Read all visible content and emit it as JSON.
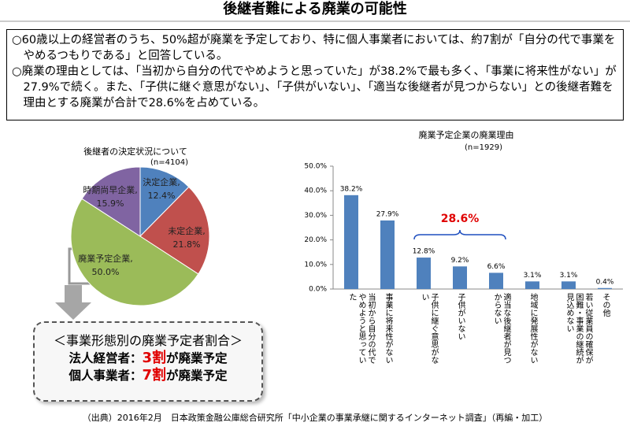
{
  "title": "後継者難による廃業の可能性",
  "summary": [
    "○60歳以上の経営者のうち、50%超が廃業を予定しており、特に個人事業者においては、約7割が「自分の代で事業をやめるつもりである」と回答している。",
    "○廃業の理由としては、「当初から自分の代でやめようと思っていた」が38.2%で最も多く、「事業に将来性がない」が27.9%で続く。また、「子供に継ぐ意思がない」、「子供がいない」、「適当な後継者が見つからない」との後継者難を理由とする廃業が合計で28.6%を占めている。"
  ],
  "chart_data": [
    {
      "type": "pie",
      "title": "後継者の決定状況について",
      "subtitle": "(n=4104)",
      "categories": [
        "決定企業,",
        "未定企業,",
        "廃業予定企業,",
        "時期尚早企業,"
      ],
      "values": [
        12.4,
        21.8,
        50,
        15.9
      ],
      "value_labels": [
        "12.4%",
        "21.8%",
        "50.0%",
        "15.9%"
      ],
      "colors": [
        "#4f81bd",
        "#c0504d",
        "#9bbb59",
        "#8064a2"
      ]
    },
    {
      "type": "bar",
      "title": "廃業予定企業の廃業理由",
      "subtitle": "(n=1929)",
      "categories": [
        "当初から自分の代でやめようと思っていた",
        "事業に将来性がない",
        "子供に継ぐ意思がない",
        "子供がいない",
        "適当な後継者が見つからない",
        "地域に発展性がない",
        "若い従業員の確保が困難・事業の継続が見込めない",
        "その他"
      ],
      "values": [
        38.2,
        27.9,
        12.8,
        9.2,
        6.6,
        3.1,
        3.1,
        0.4
      ],
      "value_labels": [
        "38.2%",
        "27.9%",
        "12.8%",
        "9.2%",
        "6.6%",
        "3.1%",
        "3.1%",
        "0.4%"
      ],
      "color": "#4f81bd",
      "ylim": [
        0,
        50
      ],
      "yticks": [
        {
          "value": 0,
          "label": "0.0%"
        },
        {
          "value": 10,
          "label": "10.0%"
        },
        {
          "value": 20,
          "label": "20.0%"
        },
        {
          "value": 30,
          "label": "30.0%"
        },
        {
          "value": 40,
          "label": "40.0%"
        },
        {
          "value": 50,
          "label": "50.0%"
        }
      ],
      "annotation": "28.6%"
    }
  ],
  "callout": {
    "title": "＜事業形態別の廃業予定者割合＞",
    "lines": [
      {
        "label": "法人経営者：",
        "highlight": "3割",
        "text": "が廃業予定"
      },
      {
        "label": "個人事業者：",
        "highlight": "7割",
        "text": "が廃業予定"
      }
    ]
  },
  "source": "（出典）2016年2月　日本政策金融公庫総合研究所「中小企業の事業承継に関するインターネット調査」（再編・加工）"
}
